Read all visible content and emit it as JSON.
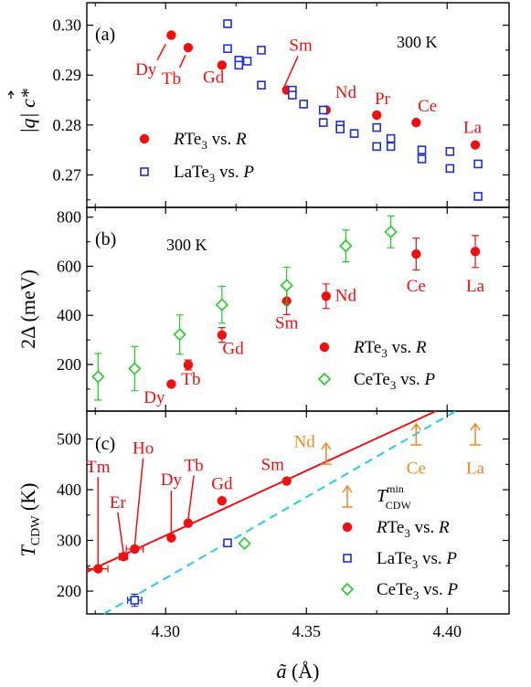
{
  "shared_x": {
    "label_symbol": "ã",
    "label_unit": " (Å)",
    "range": [
      4.272,
      4.422
    ],
    "ticks": [
      4.3,
      4.35,
      4.4
    ],
    "tick_labels": [
      "4.30",
      "4.35",
      "4.40"
    ]
  },
  "chart_data": [
    {
      "type": "scatter",
      "panel_label": "(a)",
      "annotation": "300 K",
      "ylabel_parts": [
        "|",
        "q",
        "| c*"
      ],
      "ylim": [
        0.2635,
        0.3045
      ],
      "yticks": [
        0.27,
        0.28,
        0.29,
        0.3
      ],
      "ytick_labels": [
        "0.27",
        "0.28",
        "0.29",
        "0.30"
      ],
      "legend": [
        {
          "italic": "R",
          "text": "Te",
          "sub": "3",
          "tail": " vs. ",
          "tail_italic": "R",
          "marker": "filled-circle",
          "color": "#ee1111"
        },
        {
          "italic": "",
          "text": "LaTe",
          "sub": "3",
          "tail": " vs. ",
          "tail_italic": "P",
          "marker": "open-square",
          "color": "#1f2fd0"
        }
      ],
      "series": [
        {
          "name": "RTe3 vs. R",
          "marker": "filled-circle",
          "color": "#ee1111",
          "points": [
            {
              "x": 4.302,
              "y": 0.298,
              "label": "Dy",
              "label_dx": 4.293,
              "label_dy": 0.2911
            },
            {
              "x": 4.308,
              "y": 0.2955,
              "label": "Tb",
              "label_dx": 4.302,
              "label_dy": 0.2893
            },
            {
              "x": 4.32,
              "y": 0.292,
              "label": "Gd",
              "label_dx": 4.317,
              "label_dy": 0.2896
            },
            {
              "x": 4.343,
              "y": 0.287,
              "label": "Sm",
              "label_dx": 4.348,
              "label_dy": 0.296
            },
            {
              "x": 4.357,
              "y": 0.283,
              "label": "Nd",
              "label_dx": 4.364,
              "label_dy": 0.2866
            },
            {
              "x": 4.375,
              "y": 0.282,
              "label": "Pr",
              "label_dx": 4.377,
              "label_dy": 0.2853
            },
            {
              "x": 4.389,
              "y": 0.2805,
              "label": "Ce",
              "label_dx": 4.393,
              "label_dy": 0.2838
            },
            {
              "x": 4.41,
              "y": 0.276,
              "label": "La",
              "label_dx": 4.409,
              "label_dy": 0.2795
            }
          ],
          "leaders": [
            {
              "x1": 4.3,
              "y1": 0.2962,
              "x2": 4.297,
              "y2": 0.293
            },
            {
              "x1": 4.307,
              "y1": 0.294,
              "x2": 4.305,
              "y2": 0.2915
            },
            {
              "x1": 4.342,
              "y1": 0.2875,
              "x2": 4.347,
              "y2": 0.2938
            }
          ]
        },
        {
          "name": "LaTe3 vs. P",
          "marker": "open-square",
          "color": "#1f2fd0",
          "points": [
            {
              "x": 4.322,
              "y": 0.3003
            },
            {
              "x": 4.322,
              "y": 0.2953
            },
            {
              "x": 4.326,
              "y": 0.293
            },
            {
              "x": 4.326,
              "y": 0.292
            },
            {
              "x": 4.329,
              "y": 0.2928
            },
            {
              "x": 4.334,
              "y": 0.295
            },
            {
              "x": 4.334,
              "y": 0.288
            },
            {
              "x": 4.345,
              "y": 0.287
            },
            {
              "x": 4.345,
              "y": 0.286
            },
            {
              "x": 4.349,
              "y": 0.2842
            },
            {
              "x": 4.356,
              "y": 0.283
            },
            {
              "x": 4.356,
              "y": 0.2805
            },
            {
              "x": 4.362,
              "y": 0.28
            },
            {
              "x": 4.362,
              "y": 0.2792
            },
            {
              "x": 4.367,
              "y": 0.2783
            },
            {
              "x": 4.375,
              "y": 0.2795
            },
            {
              "x": 4.375,
              "y": 0.2757
            },
            {
              "x": 4.38,
              "y": 0.2773
            },
            {
              "x": 4.38,
              "y": 0.2757
            },
            {
              "x": 4.391,
              "y": 0.275
            },
            {
              "x": 4.391,
              "y": 0.2732
            },
            {
              "x": 4.401,
              "y": 0.2747
            },
            {
              "x": 4.401,
              "y": 0.2713
            },
            {
              "x": 4.411,
              "y": 0.2722
            },
            {
              "x": 4.411,
              "y": 0.2657
            }
          ]
        }
      ]
    },
    {
      "type": "scatter",
      "panel_label": "(b)",
      "annotation": "300 K",
      "ylabel": "2Δ (meV)",
      "ylim": [
        10,
        840
      ],
      "yticks": [
        200,
        400,
        600,
        800
      ],
      "ytick_labels": [
        "200",
        "400",
        "600",
        "800"
      ],
      "legend": [
        {
          "italic": "R",
          "text": "Te",
          "sub": "3",
          "tail": " vs. ",
          "tail_italic": "R",
          "marker": "filled-circle",
          "color": "#ee1111"
        },
        {
          "italic": "",
          "text": "CeTe",
          "sub": "3",
          "tail": " vs. ",
          "tail_italic": "P",
          "marker": "open-diamond",
          "color": "#22cc22"
        }
      ],
      "series": [
        {
          "name": "RTe3 vs. R",
          "marker": "filled-circle",
          "color": "#ee1111",
          "points": [
            {
              "x": 4.302,
              "y": 120,
              "err": 0,
              "label": "Dy",
              "label_dx": 4.296,
              "label_dy": 65
            },
            {
              "x": 4.308,
              "y": 198,
              "err": 20,
              "label": "Tb",
              "label_dx": 4.309,
              "label_dy": 140
            },
            {
              "x": 4.32,
              "y": 320,
              "err": 30,
              "label": "Gd",
              "label_dx": 4.324,
              "label_dy": 265
            },
            {
              "x": 4.343,
              "y": 458,
              "err": 55,
              "label": "Sm",
              "label_dx": 4.343,
              "label_dy": 370
            },
            {
              "x": 4.357,
              "y": 478,
              "err": 50,
              "label": "Nd",
              "label_dx": 4.364,
              "label_dy": 480
            },
            {
              "x": 4.389,
              "y": 650,
              "err": 65,
              "label": "Ce",
              "label_dx": 4.389,
              "label_dy": 520
            },
            {
              "x": 4.41,
              "y": 660,
              "err": 65,
              "label": "La",
              "label_dx": 4.41,
              "label_dy": 520
            }
          ]
        },
        {
          "name": "CeTe3 vs. P",
          "marker": "open-diamond",
          "color": "#22cc22",
          "points": [
            {
              "x": 4.276,
              "y": 150,
              "err": 95
            },
            {
              "x": 4.289,
              "y": 183,
              "err": 90
            },
            {
              "x": 4.305,
              "y": 322,
              "err": 80
            },
            {
              "x": 4.32,
              "y": 443,
              "err": 75
            },
            {
              "x": 4.343,
              "y": 522,
              "err": 75
            },
            {
              "x": 4.364,
              "y": 683,
              "err": 65
            },
            {
              "x": 4.38,
              "y": 740,
              "err": 65
            }
          ]
        }
      ]
    },
    {
      "type": "scatter",
      "panel_label": "(c)",
      "ylabel_main": "T",
      "ylabel_sub": "CDW",
      "ylabel_unit": " (K)",
      "ylim": [
        155,
        555
      ],
      "yticks": [
        200,
        300,
        400,
        500
      ],
      "ytick_labels": [
        "200",
        "300",
        "400",
        "500"
      ],
      "legend": [
        {
          "kind": "arrow",
          "main": "T",
          "sup": "min",
          "sub": "CDW",
          "color": "#ee8822"
        },
        {
          "italic": "R",
          "text": "Te",
          "sub": "3",
          "tail": " vs. ",
          "tail_italic": "R",
          "marker": "filled-circle",
          "color": "#ee1111"
        },
        {
          "italic": "",
          "text": "LaTe",
          "sub": "3",
          "tail": " vs. ",
          "tail_italic": "P",
          "marker": "open-square",
          "color": "#1f2fd0"
        },
        {
          "italic": "",
          "text": "CeTe",
          "sub": "3",
          "tail": " vs. ",
          "tail_italic": "P",
          "marker": "open-diamond",
          "color": "#22cc22"
        }
      ],
      "fit_lines": [
        {
          "color": "#ee1111",
          "dash": false,
          "x": [
            4.272,
            4.396
          ],
          "y": [
            238,
            555
          ]
        },
        {
          "color": "#22ccee",
          "dash": true,
          "x": [
            4.278,
            4.403
          ],
          "y": [
            155,
            555
          ]
        }
      ],
      "series": [
        {
          "name": "RTe3 vs. R",
          "marker": "filled-circle",
          "color": "#ee1111",
          "points": [
            {
              "x": 4.276,
              "y": 244,
              "xerr": 0.0035,
              "label": "Tm",
              "label_dx": 4.276,
              "label_dy": 445
            },
            {
              "x": 4.285,
              "y": 268,
              "xerr": 0.0015,
              "label": "Er",
              "label_dx": 4.283,
              "label_dy": 375
            },
            {
              "x": 4.289,
              "y": 283,
              "xerr": 0.003,
              "label": "Ho",
              "label_dx": 4.292,
              "label_dy": 482
            },
            {
              "x": 4.302,
              "y": 305,
              "xerr": 0,
              "label": "Dy",
              "label_dx": 4.302,
              "label_dy": 420
            },
            {
              "x": 4.308,
              "y": 334,
              "xerr": 0,
              "label": "Tb",
              "label_dx": 4.31,
              "label_dy": 448
            },
            {
              "x": 4.32,
              "y": 378,
              "xerr": 0,
              "label": "Gd",
              "label_dx": 4.32,
              "label_dy": 412
            },
            {
              "x": 4.343,
              "y": 417,
              "xerr": 0,
              "label": "Sm",
              "label_dx": 4.338,
              "label_dy": 450
            }
          ],
          "leaders": [
            {
              "x1": 4.276,
              "y1": 251,
              "x2": 4.276,
              "y2": 425
            },
            {
              "x1": 4.285,
              "y1": 275,
              "x2": 4.283,
              "y2": 355
            },
            {
              "x1": 4.289,
              "y1": 290,
              "x2": 4.292,
              "y2": 462
            },
            {
              "x1": 4.302,
              "y1": 312,
              "x2": 4.302,
              "y2": 398
            },
            {
              "x1": 4.308,
              "y1": 341,
              "x2": 4.31,
              "y2": 428
            }
          ]
        },
        {
          "name": "LaTe3 vs. P",
          "marker": "open-square",
          "color": "#1f2fd0",
          "points": [
            {
              "x": 4.289,
              "y": 182,
              "xerr": 0.0025,
              "yerr": 12
            },
            {
              "x": 4.322,
              "y": 295,
              "xerr": 0,
              "yerr": 0
            }
          ]
        },
        {
          "name": "CeTe3 vs. P",
          "marker": "open-diamond",
          "color": "#22cc22",
          "points": [
            {
              "x": 4.328,
              "y": 294
            }
          ]
        },
        {
          "name": "Tmin CDW",
          "marker": "up-arrow",
          "color": "#ee8822",
          "points": [
            {
              "x": 4.357,
              "y": 472,
              "label": "Nd",
              "label_side": "left",
              "label_dy": 495
            },
            {
              "x": 4.389,
              "y": 510,
              "label": "Ce",
              "label_side": "below",
              "label_dy": 468
            },
            {
              "x": 4.41,
              "y": 510,
              "label": "La",
              "label_side": "below",
              "label_dy": 468
            }
          ]
        }
      ]
    }
  ]
}
